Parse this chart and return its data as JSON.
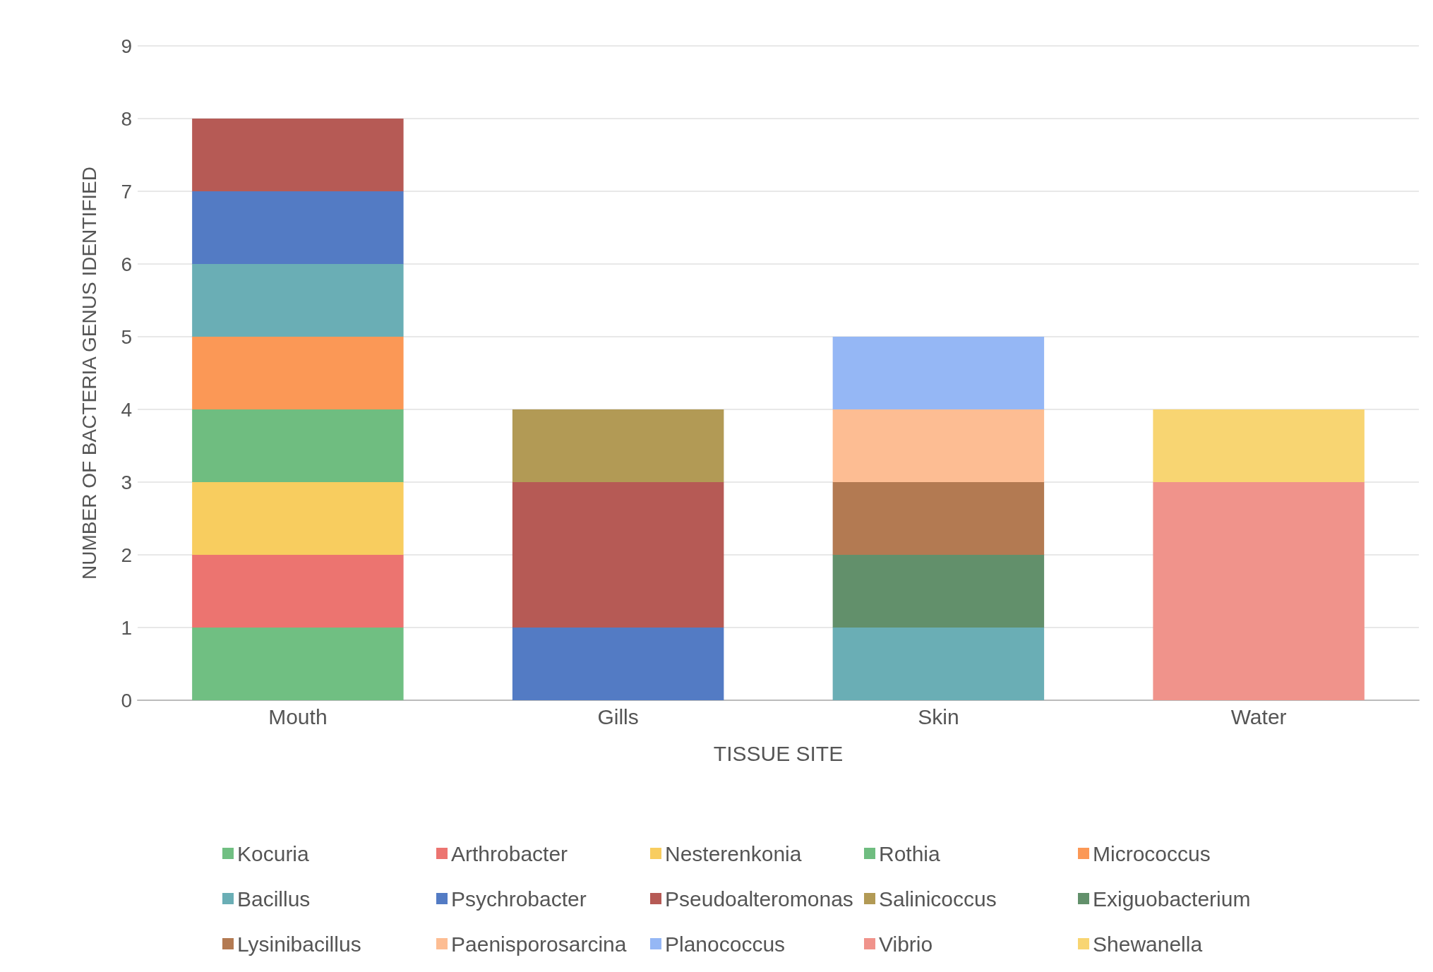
{
  "chart_data": {
    "type": "bar",
    "stacked": true,
    "xlabel": "TISSUE SITE",
    "ylabel": "NUMBER OF BACTERIA GENUS IDENTIFIED",
    "categories": [
      "Mouth",
      "Gills",
      "Skin",
      "Water"
    ],
    "series": [
      {
        "name": "Kocuria",
        "color": "#70bf82",
        "values": [
          1,
          null,
          null,
          null
        ]
      },
      {
        "name": "Arthrobacter",
        "color": "#ec7470",
        "values": [
          1,
          null,
          null,
          null
        ]
      },
      {
        "name": "Nesterenkonia",
        "color": "#f8cd5f",
        "values": [
          1,
          null,
          null,
          null
        ]
      },
      {
        "name": "Rothia",
        "color": "#6fbd80",
        "values": [
          1,
          null,
          null,
          null
        ]
      },
      {
        "name": "Micrococcus",
        "color": "#fb9856",
        "values": [
          1,
          null,
          null,
          null
        ]
      },
      {
        "name": "Bacillus",
        "color": "#6aaeb5",
        "values": [
          1,
          null,
          1,
          null
        ]
      },
      {
        "name": "Psychrobacter",
        "color": "#537bc4",
        "values": [
          1,
          1,
          null,
          null
        ]
      },
      {
        "name": "Pseudoalteromonas",
        "color": "#b65a55",
        "values": [
          1,
          2,
          null,
          null
        ]
      },
      {
        "name": "Salinicoccus",
        "color": "#b29a55",
        "values": [
          null,
          1,
          null,
          null
        ]
      },
      {
        "name": "Exiguobacterium",
        "color": "#62906b",
        "values": [
          null,
          null,
          1,
          null
        ]
      },
      {
        "name": "Lysinibacillus",
        "color": "#b37a52",
        "values": [
          null,
          null,
          1,
          null
        ]
      },
      {
        "name": "Paenisporosarcina",
        "color": "#fdbd93",
        "values": [
          null,
          null,
          1,
          null
        ]
      },
      {
        "name": "Planococcus",
        "color": "#95b7f5",
        "values": [
          null,
          null,
          1,
          null
        ]
      },
      {
        "name": "Vibrio",
        "color": "#f0938b",
        "values": [
          null,
          null,
          null,
          3
        ]
      },
      {
        "name": "Shewanella",
        "color": "#f8d572",
        "values": [
          null,
          null,
          null,
          1
        ]
      }
    ],
    "ylim": [
      0,
      9
    ],
    "yticks": [
      0,
      1,
      2,
      3,
      4,
      5,
      6,
      7,
      8,
      9
    ],
    "grid": "y",
    "legend": "bottom"
  }
}
